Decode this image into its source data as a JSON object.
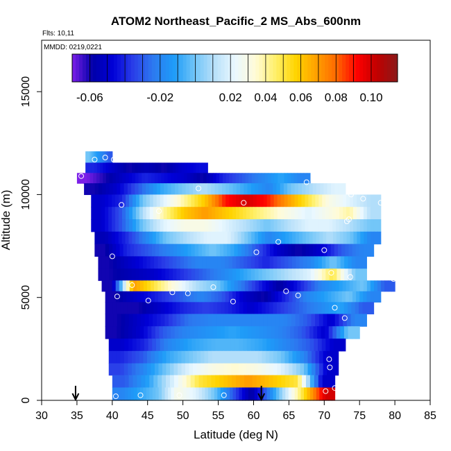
{
  "chart_data": {
    "type": "heatmap",
    "title": "ATOM2 Northeast_Pacific_2 MS_Abs_600nm",
    "flights_label": "Flts: 10,11",
    "date_label": "MMDD: 0219,0221",
    "xlabel": "Latitude (deg N)",
    "ylabel": "Altitude (m)",
    "xlim": [
      30,
      85
    ],
    "ylim": [
      0,
      17500
    ],
    "x_ticks": [
      "30",
      "35",
      "40",
      "45",
      "50",
      "55",
      "60",
      "65",
      "70",
      "75",
      "80",
      "85"
    ],
    "y_ticks": [
      "0",
      "5000",
      "10000",
      "15000"
    ],
    "grid": false,
    "colorbar": {
      "range": [
        -0.07,
        0.115
      ],
      "ticks": [
        "-0.06",
        "-0.02",
        "0.02",
        "0.04",
        "0.06",
        "0.08",
        "0.10"
      ],
      "colors": [
        "#7b1fe8",
        "#0000a8",
        "#0000d8",
        "#2a3ee8",
        "#2c7af0",
        "#1e9cf8",
        "#6fc4f8",
        "#b8e0fa",
        "#eaf8ff",
        "#fffbd8",
        "#fff06a",
        "#ffd400",
        "#ffa000",
        "#ff6800",
        "#ff0000",
        "#c00000",
        "#8a1a1a"
      ],
      "position": "top-inside"
    },
    "markers": [
      {
        "lat": 34.8,
        "alt": 0
      },
      {
        "lat": 61.1,
        "alt": 0
      }
    ],
    "bands": [
      {
        "alt": 11800,
        "lat_start": 36.2,
        "lat_end": 40,
        "values": [
          0.0,
          -0.01,
          -0.02,
          -0.03
        ]
      },
      {
        "alt": 11300,
        "lat_start": 36.2,
        "lat_end": 53.5,
        "values": [
          -0.04,
          -0.05,
          -0.06,
          -0.055,
          -0.06,
          -0.05,
          -0.045
        ]
      },
      {
        "alt": 10800,
        "lat_start": 35,
        "lat_end": 68,
        "values": [
          -0.07,
          -0.06,
          -0.05,
          -0.04,
          -0.045,
          -0.05,
          -0.06,
          -0.04,
          -0.03,
          -0.02,
          -0.01,
          -0.02
        ]
      },
      {
        "alt": 10300,
        "lat_start": 36,
        "lat_end": 73,
        "values": [
          -0.06,
          -0.05,
          -0.03,
          -0.01,
          0.0,
          0.01,
          0.0,
          -0.01,
          -0.02,
          0.0,
          0.01,
          0.02
        ]
      },
      {
        "alt": 9700,
        "lat_start": 37,
        "lat_end": 78,
        "values": [
          -0.05,
          -0.04,
          0.0,
          0.02,
          0.04,
          0.06,
          0.09,
          0.1,
          0.09,
          0.07,
          0.05,
          0.03,
          0.02,
          0.01
        ]
      },
      {
        "alt": 9100,
        "lat_start": 37,
        "lat_end": 78,
        "values": [
          -0.05,
          -0.03,
          0.01,
          0.04,
          0.06,
          0.07,
          0.06,
          0.05,
          0.04,
          0.03,
          0.02,
          0.03,
          0.04,
          0.01
        ]
      },
      {
        "alt": 8500,
        "lat_start": 37,
        "lat_end": 78,
        "values": [
          -0.05,
          -0.03,
          0.0,
          0.02,
          0.03,
          0.03,
          0.02,
          0.01,
          0.0,
          0.01,
          0.02,
          0.02,
          0.01,
          0.0
        ]
      },
      {
        "alt": 7900,
        "lat_start": 37.5,
        "lat_end": 78,
        "values": [
          -0.055,
          -0.04,
          -0.02,
          0.0,
          0.01,
          0.02,
          0.02,
          0.0,
          -0.02,
          -0.01,
          0.0,
          0.01,
          0.0,
          -0.02
        ]
      },
      {
        "alt": 7300,
        "lat_start": 37.5,
        "lat_end": 77,
        "values": [
          -0.06,
          -0.04,
          -0.03,
          -0.02,
          -0.01,
          0.0,
          -0.01,
          -0.03,
          -0.05,
          -0.06,
          -0.05,
          -0.03,
          -0.02
        ]
      },
      {
        "alt": 6700,
        "lat_start": 38,
        "lat_end": 76,
        "values": [
          -0.06,
          -0.05,
          -0.04,
          -0.03,
          -0.02,
          -0.02,
          -0.03,
          -0.04,
          -0.03,
          -0.02,
          0.0,
          -0.02
        ]
      },
      {
        "alt": 6100,
        "lat_start": 38,
        "lat_end": 76,
        "values": [
          -0.06,
          -0.055,
          -0.05,
          -0.04,
          -0.03,
          -0.02,
          -0.01,
          0.0,
          0.01,
          0.02,
          0.05,
          0.0
        ]
      },
      {
        "alt": 5550,
        "lat_start": 38.5,
        "lat_end": 80,
        "values": [
          -0.06,
          0.07,
          0.05,
          0.03,
          0.01,
          0.0,
          -0.02,
          -0.04,
          -0.06,
          -0.04,
          -0.02,
          -0.01,
          0.0,
          -0.03
        ]
      },
      {
        "alt": 5050,
        "lat_start": 39,
        "lat_end": 78,
        "values": [
          -0.06,
          -0.05,
          -0.04,
          -0.03,
          -0.02,
          -0.03,
          -0.05,
          -0.06,
          -0.04,
          -0.02,
          -0.01,
          0.0,
          -0.02
        ]
      },
      {
        "alt": 4500,
        "lat_start": 39,
        "lat_end": 77,
        "values": [
          -0.06,
          -0.06,
          -0.05,
          -0.04,
          -0.035,
          -0.04,
          -0.05,
          -0.04,
          -0.03,
          -0.02,
          -0.01,
          -0.03
        ]
      },
      {
        "alt": 3900,
        "lat_start": 39,
        "lat_end": 76,
        "values": [
          -0.06,
          -0.05,
          -0.04,
          -0.025,
          -0.02,
          -0.02,
          -0.02,
          -0.02,
          -0.03,
          -0.05,
          -0.02
        ]
      },
      {
        "alt": 3300,
        "lat_start": 39,
        "lat_end": 75,
        "values": [
          -0.06,
          -0.05,
          -0.03,
          -0.02,
          -0.015,
          -0.01,
          -0.015,
          -0.02,
          -0.03,
          -0.05,
          0.0
        ]
      },
      {
        "alt": 2700,
        "lat_start": 39.5,
        "lat_end": 73,
        "values": [
          -0.05,
          -0.04,
          -0.02,
          -0.01,
          -0.005,
          -0.005,
          -0.01,
          -0.02,
          -0.03,
          -0.05
        ]
      },
      {
        "alt": 2100,
        "lat_start": 39.5,
        "lat_end": 72,
        "values": [
          -0.04,
          -0.03,
          -0.01,
          0.0,
          0.01,
          0.01,
          0.01,
          0.0,
          -0.02,
          -0.05
        ]
      },
      {
        "alt": 1500,
        "lat_start": 39.5,
        "lat_end": 72,
        "values": [
          -0.035,
          -0.02,
          0.0,
          0.02,
          0.03,
          0.035,
          0.03,
          0.02,
          0.0,
          -0.05
        ]
      },
      {
        "alt": 950,
        "lat_start": 40,
        "lat_end": 71.5,
        "values": [
          -0.03,
          -0.01,
          0.02,
          0.05,
          0.06,
          0.07,
          0.06,
          0.05,
          -0.05
        ]
      },
      {
        "alt": 300,
        "lat_start": 40,
        "lat_end": 71.5,
        "values": [
          -0.02,
          -0.01,
          0.0,
          0.03,
          0.02,
          0.0,
          -0.03,
          -0.06,
          -0.02,
          0.02,
          0.06,
          0.1
        ]
      }
    ],
    "points": [
      {
        "lat": 37.5,
        "alt": 11700
      },
      {
        "lat": 39.0,
        "alt": 11800
      },
      {
        "lat": 40.2,
        "alt": 11700
      },
      {
        "lat": 35.6,
        "alt": 10900
      },
      {
        "lat": 67.5,
        "alt": 10600
      },
      {
        "lat": 52.2,
        "alt": 10300
      },
      {
        "lat": 73.8,
        "alt": 10000
      },
      {
        "lat": 75.5,
        "alt": 9800
      },
      {
        "lat": 78.0,
        "alt": 9600
      },
      {
        "lat": 41.3,
        "alt": 9500
      },
      {
        "lat": 58.6,
        "alt": 9600
      },
      {
        "lat": 46.6,
        "alt": 9200
      },
      {
        "lat": 73.5,
        "alt": 8800
      },
      {
        "lat": 73.2,
        "alt": 8700
      },
      {
        "lat": 63.5,
        "alt": 7700
      },
      {
        "lat": 60.4,
        "alt": 7200
      },
      {
        "lat": 70.0,
        "alt": 7300
      },
      {
        "lat": 40.0,
        "alt": 7000
      },
      {
        "lat": 71.0,
        "alt": 6200
      },
      {
        "lat": 73.7,
        "alt": 6000
      },
      {
        "lat": 79.8,
        "alt": 5900
      },
      {
        "lat": 42.8,
        "alt": 5600
      },
      {
        "lat": 54.3,
        "alt": 5500
      },
      {
        "lat": 48.5,
        "alt": 5250
      },
      {
        "lat": 50.7,
        "alt": 5200
      },
      {
        "lat": 64.6,
        "alt": 5300
      },
      {
        "lat": 66.3,
        "alt": 5100
      },
      {
        "lat": 40.7,
        "alt": 5050
      },
      {
        "lat": 45.1,
        "alt": 4850
      },
      {
        "lat": 57.1,
        "alt": 4800
      },
      {
        "lat": 71.5,
        "alt": 4500
      },
      {
        "lat": 72.9,
        "alt": 4000
      },
      {
        "lat": 70.7,
        "alt": 2000
      },
      {
        "lat": 70.8,
        "alt": 1600
      },
      {
        "lat": 71.5,
        "alt": 600
      },
      {
        "lat": 70.2,
        "alt": 450
      },
      {
        "lat": 40.5,
        "alt": 200
      },
      {
        "lat": 44.0,
        "alt": 250
      },
      {
        "lat": 49.5,
        "alt": 250
      },
      {
        "lat": 55.8,
        "alt": 250
      },
      {
        "lat": 72.0,
        "alt": 500
      }
    ]
  }
}
